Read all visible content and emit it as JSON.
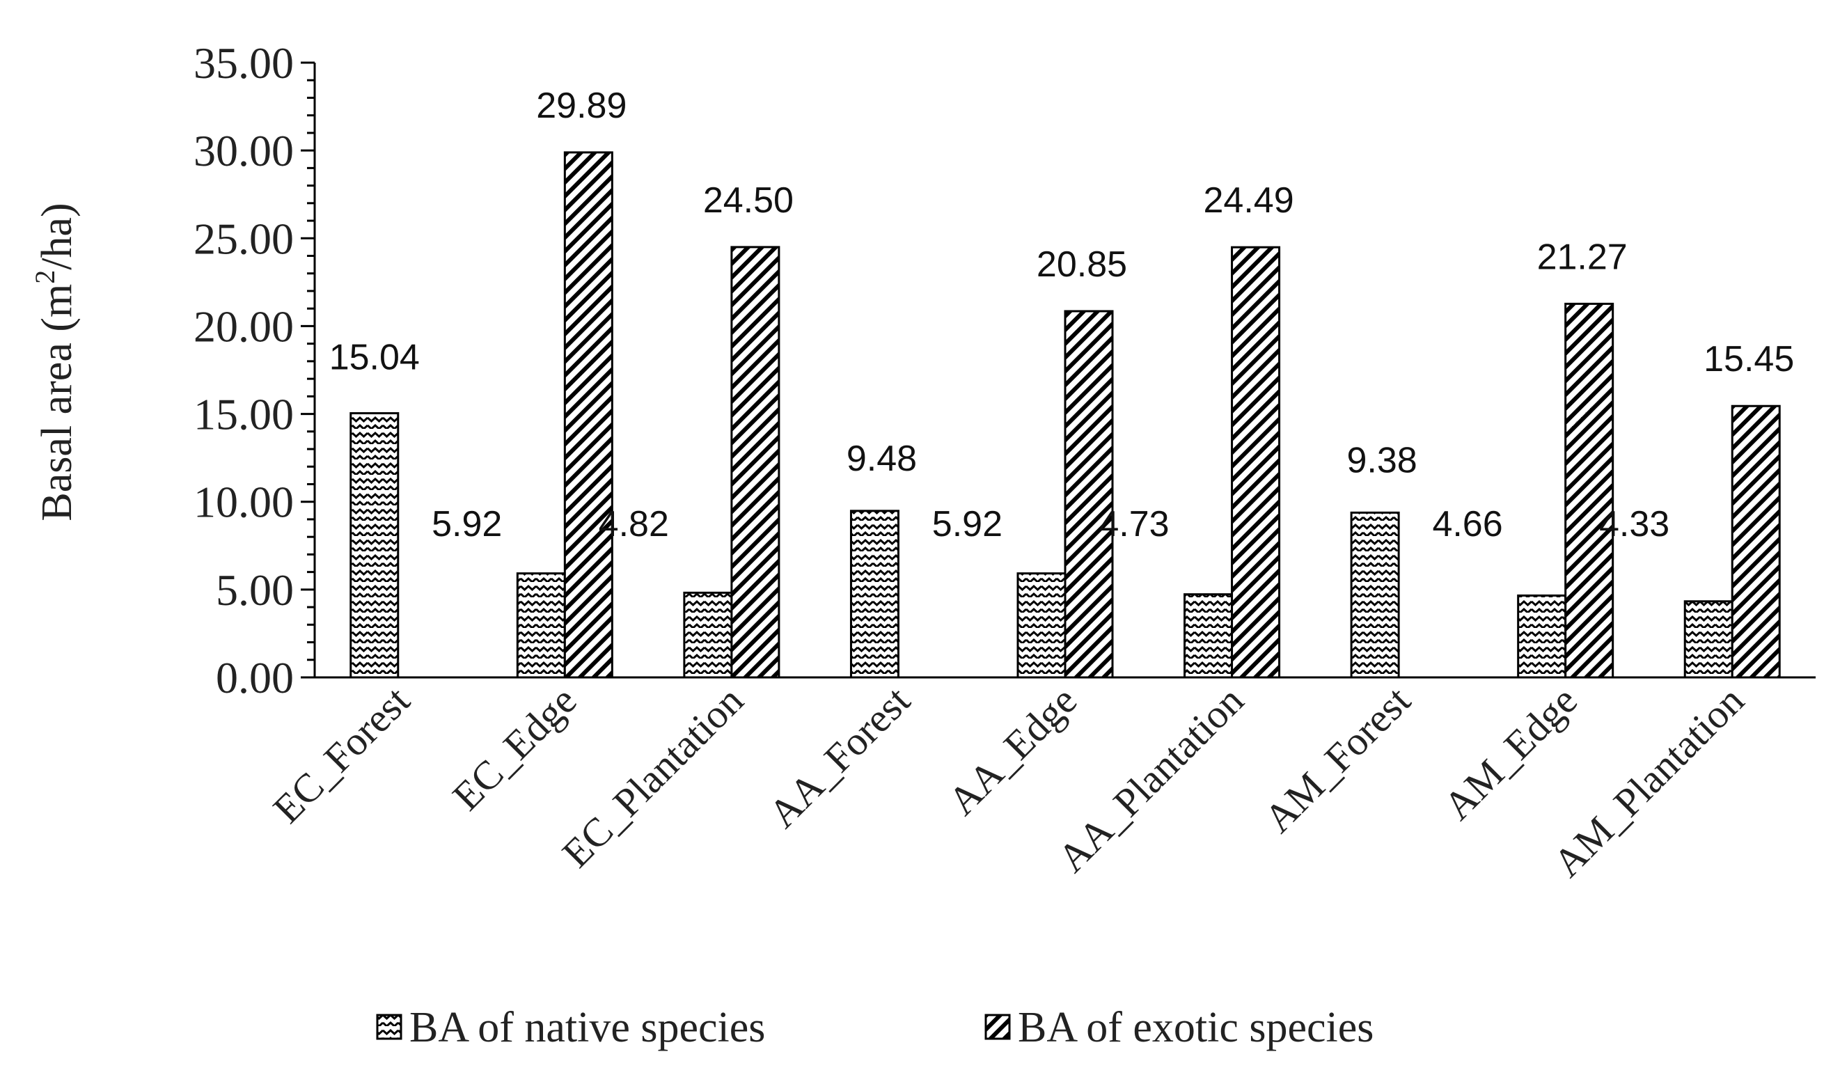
{
  "chart_data": {
    "type": "bar",
    "title": "",
    "xlabel": "",
    "ylabel": "Basal area (m²/ha)",
    "ylabel_parts": {
      "main": "Basal area (m",
      "sup": "2",
      "tail": "/ha)"
    },
    "ylim": [
      0,
      35
    ],
    "yticks": [
      "0.00",
      "5.00",
      "10.00",
      "15.00",
      "20.00",
      "25.00",
      "30.00",
      "35.00"
    ],
    "categories": [
      "EC_Forest",
      "EC_Edge",
      "EC_Plantation",
      "AA_Forest",
      "AA_Edge",
      "AA_Plantation",
      "AM_Forest",
      "AM_Edge",
      "AM_Plantation"
    ],
    "series": [
      {
        "name": "BA of native species",
        "values": [
          15.04,
          5.92,
          4.82,
          9.48,
          5.92,
          4.73,
          9.38,
          4.66,
          4.33
        ],
        "labels": [
          "15.04",
          "5.92",
          "4.82",
          "9.48",
          "5.92",
          "4.73",
          "9.38",
          "4.66",
          "4.33"
        ],
        "pattern": "zigzag"
      },
      {
        "name": "BA of exotic species",
        "values": [
          null,
          29.89,
          24.5,
          null,
          20.85,
          24.49,
          null,
          21.27,
          15.45
        ],
        "labels": [
          "",
          "29.89",
          "24.50",
          "",
          "20.85",
          "24.49",
          "",
          "21.27",
          "15.45"
        ],
        "pattern": "diagonal"
      }
    ],
    "grid": false,
    "legend_position": "bottom"
  }
}
